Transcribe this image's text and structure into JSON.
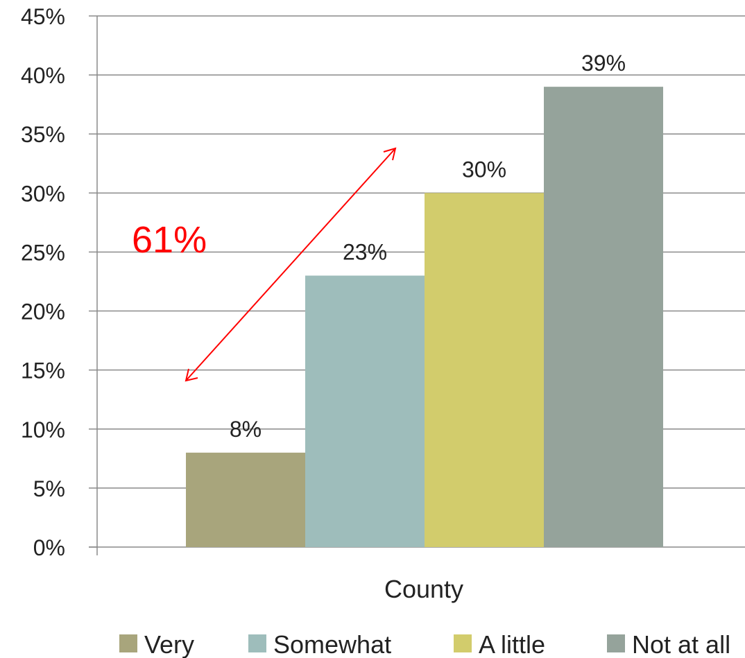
{
  "chart_data": {
    "type": "bar",
    "xlabel": "County",
    "categories": [
      "County"
    ],
    "ylim": [
      0,
      45
    ],
    "yticks": [
      "0%",
      "5%",
      "10%",
      "15%",
      "20%",
      "25%",
      "30%",
      "35%",
      "40%",
      "45%"
    ],
    "grid": true,
    "legend_position": "bottom",
    "series": [
      {
        "name": "Very",
        "values": [
          8
        ],
        "label": "8%",
        "color": "#a8a57c"
      },
      {
        "name": "Somewhat",
        "values": [
          23
        ],
        "label": "23%",
        "color": "#9ebdbb"
      },
      {
        "name": "A little",
        "values": [
          30
        ],
        "label": "30%",
        "color": "#d2cc6c"
      },
      {
        "name": "Not at all",
        "values": [
          39
        ],
        "label": "39%",
        "color": "#95a39b"
      }
    ],
    "annotation": {
      "text": "61%",
      "color": "#ff0000"
    }
  }
}
